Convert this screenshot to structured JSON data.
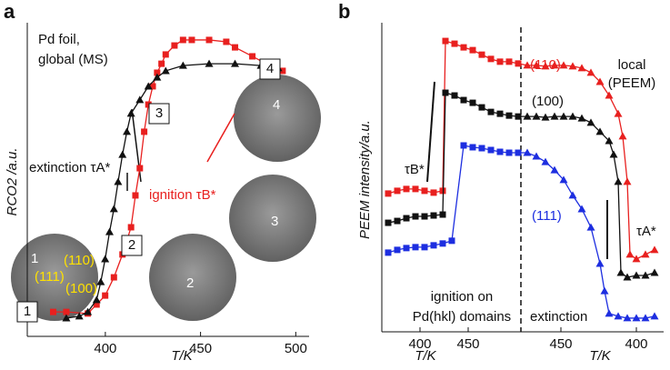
{
  "chart_data": [
    {
      "type": "line",
      "panel": "a",
      "xlabel": "T/K",
      "ylabel": "RCO2 /a.u.",
      "xlim": [
        359,
        507
      ],
      "ylim": [
        0,
        1
      ],
      "xticks": [
        400,
        450,
        500
      ],
      "annotations": [
        "Pd foil,",
        "global (MS)",
        "extinction τA*",
        "ignition τB*",
        "1",
        "2",
        "3",
        "4",
        "1",
        "2",
        "3",
        "4",
        "(110)",
        "(111)",
        "(100)"
      ],
      "series": [
        {
          "name": "ignition",
          "color": "#e8201f",
          "marker": "square",
          "x": [
            372.6,
            379.5,
            390.8,
            395.4,
            399.9,
            404.5,
            409,
            413.5,
            415.8,
            418.1,
            420.4,
            422.6,
            424.9,
            427.2,
            429.5,
            431.7,
            436.3,
            440.8,
            445.4,
            454.5,
            463.5,
            468.1,
            477.2,
            486.3,
            493.1
          ],
          "values": [
            0.079,
            0.079,
            0.074,
            0.103,
            0.132,
            0.191,
            0.265,
            0.353,
            0.456,
            0.544,
            0.662,
            0.75,
            0.809,
            0.853,
            0.882,
            0.912,
            0.941,
            0.959,
            0.959,
            0.959,
            0.953,
            0.935,
            0.906,
            0.876,
            0.859
          ]
        },
        {
          "name": "extinction",
          "color": "#111111",
          "marker": "triangle",
          "x": [
            379.5,
            386.3,
            390.8,
            395.4,
            397.6,
            399.9,
            402.2,
            404.5,
            406.7,
            409,
            411.3,
            413.5,
            418.1,
            422.6,
            427.2,
            431.7,
            440.8,
            454.5,
            468.1,
            481.7,
            490.8
          ],
          "values": [
            0.059,
            0.065,
            0.079,
            0.118,
            0.176,
            0.25,
            0.338,
            0.412,
            0.5,
            0.588,
            0.662,
            0.721,
            0.765,
            0.809,
            0.838,
            0.859,
            0.876,
            0.882,
            0.882,
            0.876,
            0.868
          ]
        }
      ]
    },
    {
      "type": "line",
      "panel": "b",
      "xlabel": "T/K",
      "ylabel": "PEEM intensity/a.u.",
      "xlim": [
        0,
        310
      ],
      "ylim": [
        0,
        1
      ],
      "divider": 153,
      "xticks": [
        {
          "value": 42,
          "label": "400"
        },
        {
          "value": 95,
          "label": "450"
        },
        {
          "value": 197,
          "label": "450"
        },
        {
          "value": 280,
          "label": "400"
        }
      ],
      "annotations": [
        "local",
        "(PEEM)",
        "τB*",
        "τA*",
        "ignition on",
        "Pd(hkl) domains",
        "extinction"
      ],
      "series": [
        {
          "name": "(110)",
          "color": "#e8201f",
          "x": [
            7,
            17,
            27,
            37,
            47,
            57,
            67,
            70,
            80,
            90,
            100,
            110,
            120,
            130,
            140,
            150,
            160,
            170,
            180,
            190,
            200,
            210,
            220,
            230,
            240,
            250,
            260,
            265,
            270,
            273,
            280,
            290,
            300
          ],
          "values": [
            0.454,
            0.463,
            0.469,
            0.469,
            0.463,
            0.457,
            0.463,
            0.955,
            0.946,
            0.934,
            0.925,
            0.91,
            0.896,
            0.887,
            0.887,
            0.881,
            0.875,
            0.875,
            0.872,
            0.875,
            0.875,
            0.872,
            0.866,
            0.851,
            0.821,
            0.776,
            0.716,
            0.642,
            0.493,
            0.254,
            0.239,
            0.254,
            0.269
          ]
        },
        {
          "name": "(100)",
          "color": "#111111",
          "x": [
            7,
            17,
            27,
            37,
            47,
            57,
            67,
            70,
            80,
            90,
            100,
            110,
            120,
            130,
            140,
            150,
            160,
            170,
            180,
            190,
            200,
            210,
            220,
            230,
            240,
            250,
            255,
            260,
            263,
            270,
            280,
            290,
            300
          ],
          "values": [
            0.358,
            0.364,
            0.373,
            0.379,
            0.379,
            0.382,
            0.385,
            0.785,
            0.776,
            0.761,
            0.752,
            0.737,
            0.722,
            0.716,
            0.71,
            0.707,
            0.707,
            0.707,
            0.704,
            0.707,
            0.707,
            0.707,
            0.701,
            0.687,
            0.657,
            0.627,
            0.582,
            0.493,
            0.194,
            0.179,
            0.185,
            0.185,
            0.194
          ]
        },
        {
          "name": "(111)",
          "color": "#1d2ee0",
          "x": [
            7,
            17,
            27,
            37,
            47,
            57,
            67,
            77,
            90,
            100,
            110,
            120,
            130,
            140,
            150,
            160,
            170,
            180,
            190,
            200,
            210,
            220,
            230,
            240,
            245,
            250,
            260,
            270,
            280,
            290,
            300
          ],
          "values": [
            0.26,
            0.269,
            0.275,
            0.278,
            0.278,
            0.284,
            0.29,
            0.299,
            0.612,
            0.606,
            0.603,
            0.597,
            0.591,
            0.588,
            0.588,
            0.588,
            0.576,
            0.558,
            0.531,
            0.499,
            0.448,
            0.403,
            0.343,
            0.224,
            0.134,
            0.06,
            0.051,
            0.045,
            0.045,
            0.045,
            0.051
          ]
        }
      ]
    }
  ]
}
